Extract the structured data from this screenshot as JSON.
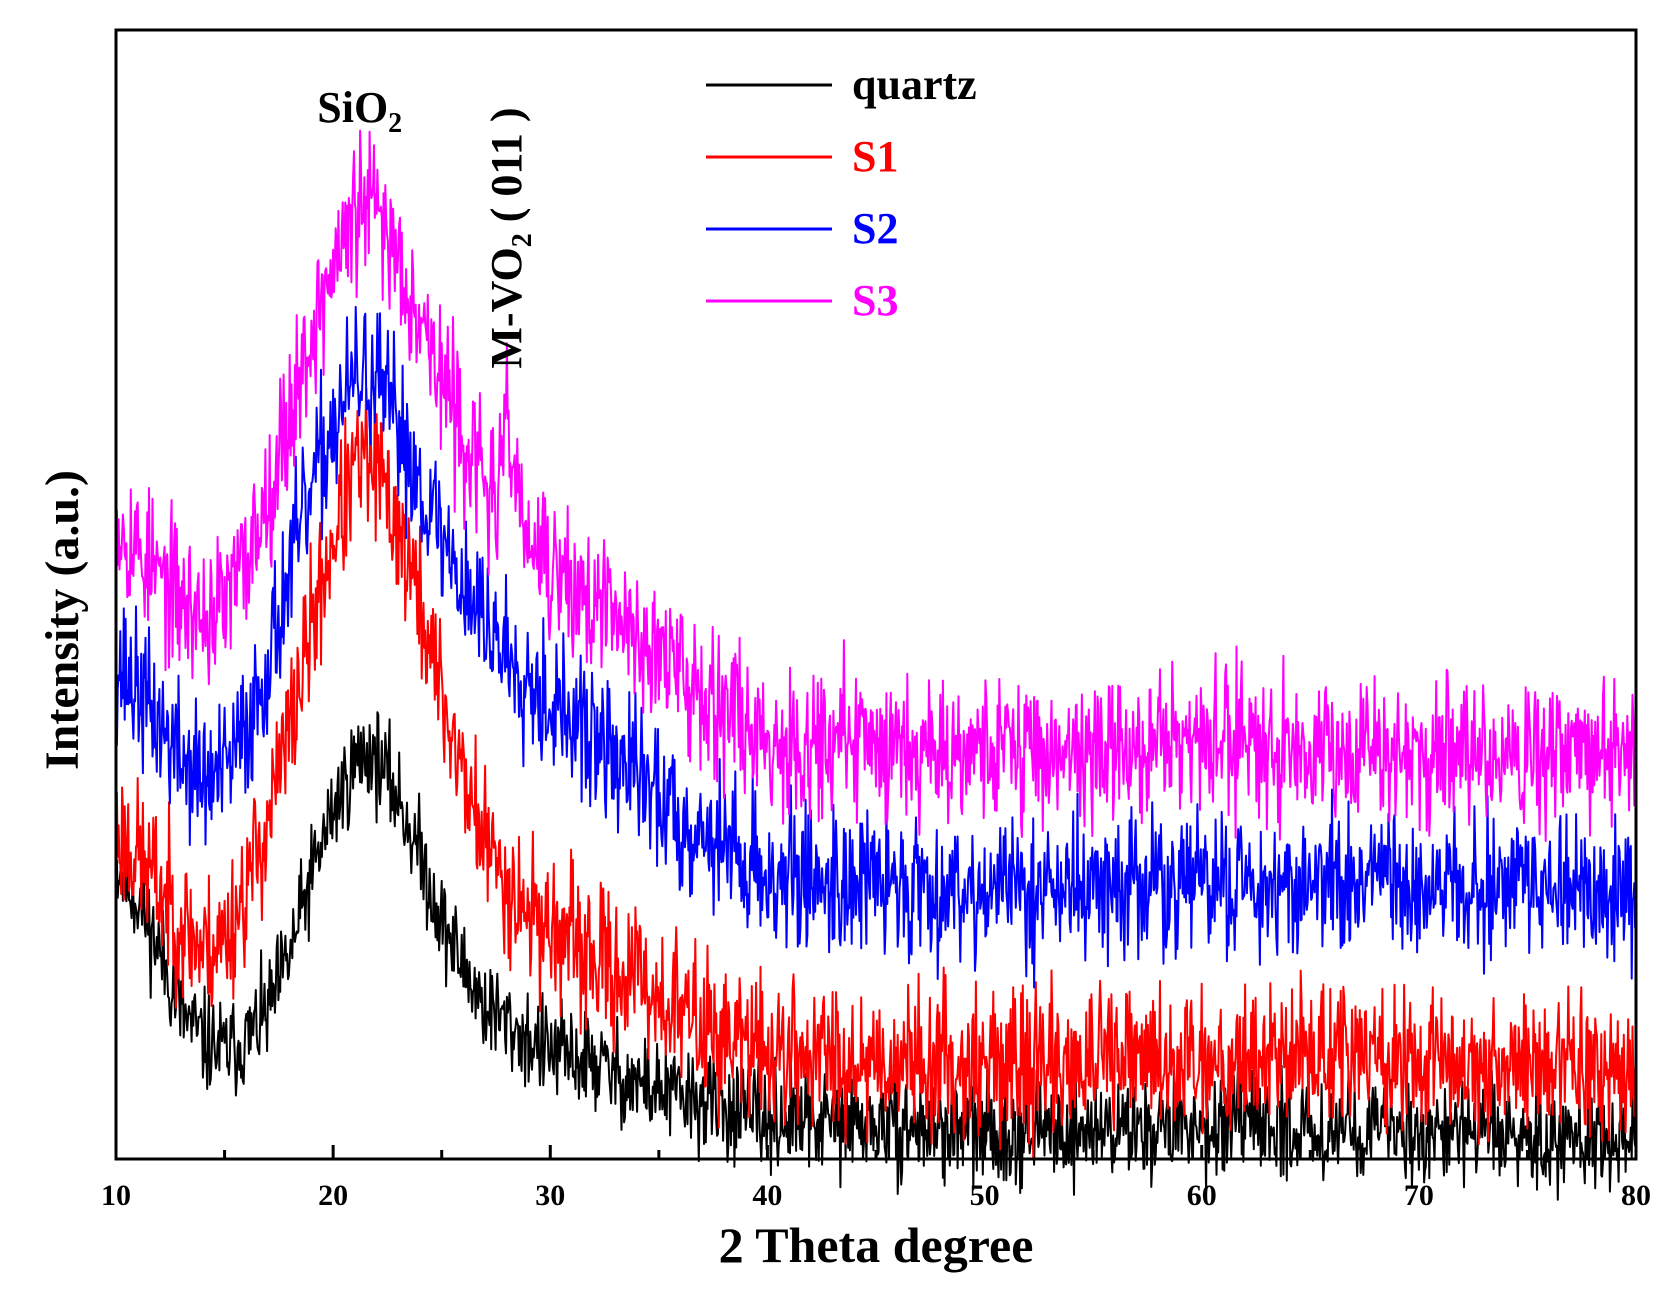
{
  "chart_data": {
    "type": "line",
    "title": "",
    "xlabel": "2 Theta degree",
    "ylabel": "Intensity (a.u.)",
    "xlim": [
      10,
      80
    ],
    "ylim": [
      0,
      100
    ],
    "y_tick_labels_shown": false,
    "x_ticks": [
      10,
      20,
      30,
      40,
      50,
      60,
      70,
      80
    ],
    "x_tick_labels": [
      "10",
      "20",
      "30",
      "40",
      "50",
      "60",
      "70",
      "80"
    ],
    "legend_position": "top-center",
    "annotations": [
      {
        "id": "sio2",
        "text": "SiO",
        "subscript": "2",
        "x": 21.5,
        "orientation": "horizontal"
      },
      {
        "id": "mvo2",
        "prefix": "M-VO",
        "subscript": "2",
        "suffix": " ( 011 )",
        "x": 28.0,
        "orientation": "vertical"
      }
    ],
    "series": [
      {
        "name": "quartz",
        "color": "#000000",
        "noise": 2.2,
        "seed": 11,
        "points": [
          [
            10,
            26
          ],
          [
            11,
            23
          ],
          [
            12,
            18.5
          ],
          [
            13,
            13
          ],
          [
            14,
            10.5
          ],
          [
            15,
            9.5
          ],
          [
            16,
            10.5
          ],
          [
            17,
            13
          ],
          [
            18,
            18
          ],
          [
            19,
            25
          ],
          [
            20,
            31
          ],
          [
            21,
            35
          ],
          [
            21.5,
            36
          ],
          [
            22,
            35.5
          ],
          [
            23,
            32
          ],
          [
            24,
            27
          ],
          [
            25,
            21
          ],
          [
            26,
            17
          ],
          [
            27,
            13.5
          ],
          [
            28,
            12
          ],
          [
            29,
            10.5
          ],
          [
            30,
            9.5
          ],
          [
            31,
            9
          ],
          [
            32,
            8.5
          ],
          [
            33,
            7.5
          ],
          [
            35,
            6
          ],
          [
            37,
            5
          ],
          [
            40,
            3.5
          ],
          [
            45,
            3
          ],
          [
            50,
            2.3
          ],
          [
            55,
            2.6
          ],
          [
            60,
            3
          ],
          [
            65,
            2.8
          ],
          [
            70,
            2.5
          ],
          [
            75,
            2.2
          ],
          [
            80,
            2
          ]
        ]
      },
      {
        "name": "S1",
        "color": "#ff0000",
        "noise": 3.2,
        "seed": 23,
        "points": [
          [
            10,
            29
          ],
          [
            11,
            27
          ],
          [
            12,
            24
          ],
          [
            13,
            21
          ],
          [
            14,
            18.5
          ],
          [
            15,
            19.5
          ],
          [
            16,
            24
          ],
          [
            17,
            30
          ],
          [
            18,
            38
          ],
          [
            19,
            47
          ],
          [
            20,
            55
          ],
          [
            21,
            61
          ],
          [
            21.5,
            62
          ],
          [
            22,
            61
          ],
          [
            23,
            56
          ],
          [
            24,
            49
          ],
          [
            25,
            41
          ],
          [
            26,
            34
          ],
          [
            27,
            28
          ],
          [
            28,
            24.5
          ],
          [
            29,
            22
          ],
          [
            30,
            20.5
          ],
          [
            31,
            19
          ],
          [
            32,
            17.5
          ],
          [
            34,
            16
          ],
          [
            36,
            13
          ],
          [
            38,
            11
          ],
          [
            40,
            9.5
          ],
          [
            45,
            9
          ],
          [
            50,
            8.5
          ],
          [
            55,
            8.5
          ],
          [
            60,
            9
          ],
          [
            65,
            9.5
          ],
          [
            70,
            8.5
          ],
          [
            75,
            8.5
          ],
          [
            80,
            8
          ]
        ]
      },
      {
        "name": "S2",
        "color": "#0000ff",
        "noise": 3.2,
        "seed": 37,
        "points": [
          [
            10,
            44
          ],
          [
            11,
            41.5
          ],
          [
            12,
            38.5
          ],
          [
            13,
            35.5
          ],
          [
            14,
            33.5
          ],
          [
            15,
            34
          ],
          [
            16,
            38
          ],
          [
            17,
            44
          ],
          [
            18,
            52
          ],
          [
            19,
            59
          ],
          [
            20,
            65
          ],
          [
            21,
            69
          ],
          [
            21.5,
            69.5
          ],
          [
            22,
            68.5
          ],
          [
            23,
            65
          ],
          [
            24,
            60
          ],
          [
            25,
            55
          ],
          [
            26,
            51
          ],
          [
            27,
            47.5
          ],
          [
            28,
            45
          ],
          [
            29,
            43
          ],
          [
            30,
            40.5
          ],
          [
            31,
            38.5
          ],
          [
            32,
            37
          ],
          [
            34,
            34
          ],
          [
            36,
            30
          ],
          [
            38,
            28
          ],
          [
            40,
            25
          ],
          [
            45,
            24.5
          ],
          [
            50,
            24
          ],
          [
            55,
            24
          ],
          [
            60,
            24.5
          ],
          [
            65,
            24.5
          ],
          [
            70,
            24
          ],
          [
            75,
            24
          ],
          [
            80,
            23.5
          ]
        ]
      },
      {
        "name": "S3",
        "color": "#ff00ff",
        "noise": 3.2,
        "seed": 53,
        "points": [
          [
            10,
            57
          ],
          [
            11,
            54
          ],
          [
            12,
            51.5
          ],
          [
            13,
            49.5
          ],
          [
            14,
            48
          ],
          [
            15,
            49
          ],
          [
            16,
            53
          ],
          [
            17,
            59
          ],
          [
            18,
            66
          ],
          [
            19,
            73
          ],
          [
            20,
            79
          ],
          [
            21,
            83.5
          ],
          [
            21.5,
            84.5
          ],
          [
            22,
            84
          ],
          [
            23,
            80
          ],
          [
            24,
            75
          ],
          [
            25,
            69
          ],
          [
            26,
            64
          ],
          [
            27,
            60
          ],
          [
            27.6,
            58
          ],
          [
            28.1,
            66
          ],
          [
            28.6,
            57
          ],
          [
            29,
            54.5
          ],
          [
            30,
            52
          ],
          [
            31,
            50.5
          ],
          [
            32,
            49
          ],
          [
            34,
            46.5
          ],
          [
            36,
            43
          ],
          [
            38,
            40.5
          ],
          [
            40,
            37
          ],
          [
            45,
            37
          ],
          [
            50,
            36.5
          ],
          [
            55,
            36
          ],
          [
            60,
            37
          ],
          [
            65,
            37
          ],
          [
            70,
            36
          ],
          [
            75,
            36
          ],
          [
            80,
            35.5
          ]
        ]
      }
    ]
  }
}
